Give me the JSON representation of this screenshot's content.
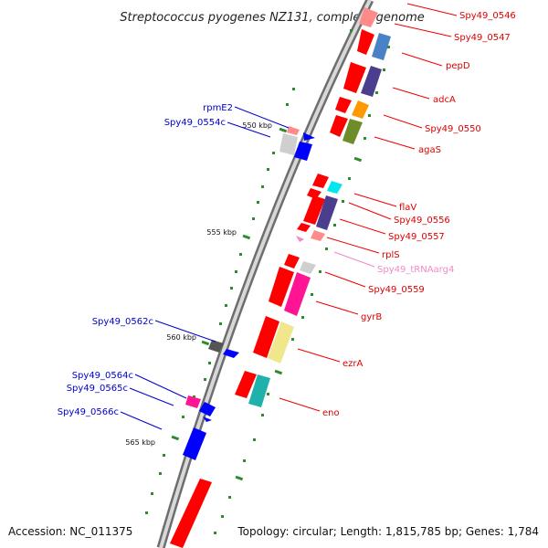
{
  "title": "Streptococcus pyogenes NZ131, complete genome",
  "footer": {
    "accession": "Accession: NC_011375",
    "summary": "Topology: circular; Length: 1,815,785 bp; Genes: 1,784"
  },
  "ticks": [
    "550 kbp",
    "555 kbp",
    "560 kbp",
    "565 kbp"
  ],
  "right_labels": [
    {
      "text": "Spy49_0546",
      "color": "#dd0000"
    },
    {
      "text": "Spy49_0547",
      "color": "#dd0000"
    },
    {
      "text": "pepD",
      "color": "#dd0000"
    },
    {
      "text": "adcA",
      "color": "#dd0000"
    },
    {
      "text": "Spy49_0550",
      "color": "#dd0000"
    },
    {
      "text": "agaS",
      "color": "#dd0000"
    },
    {
      "text": "flaV",
      "color": "#dd0000"
    },
    {
      "text": "Spy49_0556",
      "color": "#dd0000"
    },
    {
      "text": "Spy49_0557",
      "color": "#dd0000"
    },
    {
      "text": "rplS",
      "color": "#dd0000"
    },
    {
      "text": "Spy49_tRNAarg4",
      "color": "#f08ac8"
    },
    {
      "text": "Spy49_0559",
      "color": "#dd0000"
    },
    {
      "text": "gyrB",
      "color": "#dd0000"
    },
    {
      "text": "ezrA",
      "color": "#dd0000"
    },
    {
      "text": "eno",
      "color": "#dd0000"
    }
  ],
  "left_labels": [
    {
      "text": "rpmE2",
      "color": "#0000cc"
    },
    {
      "text": "Spy49_0554c",
      "color": "#0000cc"
    },
    {
      "text": "Spy49_0562c",
      "color": "#0000cc"
    },
    {
      "text": "Spy49_0564c",
      "color": "#0000cc"
    },
    {
      "text": "Spy49_0565c",
      "color": "#0000cc"
    },
    {
      "text": "Spy49_0566c",
      "color": "#0000cc"
    }
  ],
  "colors": {
    "forward_strand": "#ff0000",
    "reverse_strand": "#0000ff",
    "backbone": "#808080",
    "tick": "#228b22"
  }
}
